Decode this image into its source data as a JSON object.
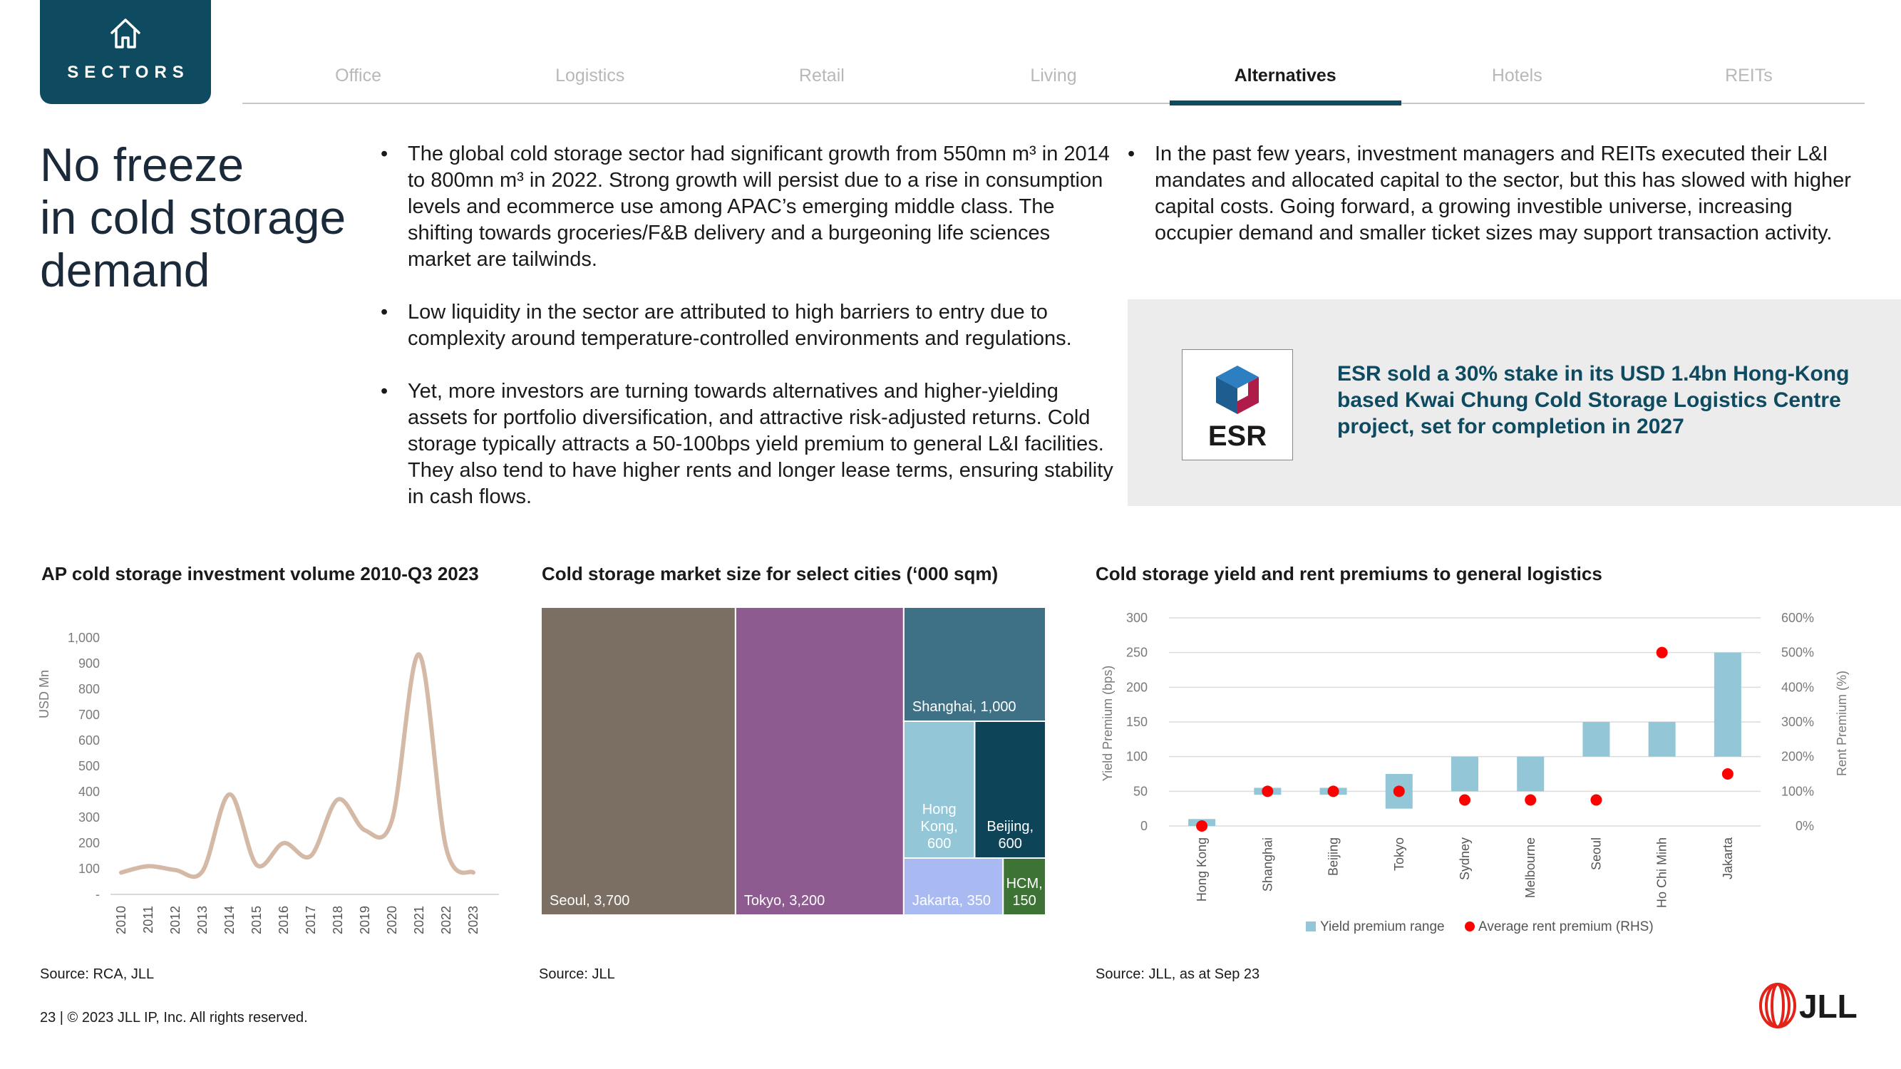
{
  "nav": {
    "sectors_label": "SECTORS",
    "tabs": [
      {
        "label": "Office",
        "active": false
      },
      {
        "label": "Logistics",
        "active": false
      },
      {
        "label": "Retail",
        "active": false
      },
      {
        "label": "Living",
        "active": false
      },
      {
        "label": "Alternatives",
        "active": true
      },
      {
        "label": "Hotels",
        "active": false
      },
      {
        "label": "REITs",
        "active": false
      }
    ]
  },
  "title": "No freeze\nin cold storage\ndemand",
  "bullets_left": [
    "The global cold storage sector had significant growth from 550mn m³ in 2014 to 800mn m³  in 2022. Strong growth will persist due to a rise in consumption levels and ecommerce use among APAC’s emerging middle class. The shifting towards groceries/F&B delivery and a burgeoning life sciences market are tailwinds.",
    "Low liquidity in the sector are attributed to high barriers to entry due to complexity around temperature-controlled environments and regulations.",
    "Yet, more investors are turning towards alternatives and higher-yielding assets for portfolio diversification, and attractive risk-adjusted returns. Cold storage typically attracts a 50-100bps yield premium to general L&I facilities. They also tend to have higher rents and longer lease terms, ensuring stability in cash flows."
  ],
  "bullets_right": [
    "In the past few years, investment managers and REITs executed their L&I mandates and allocated capital to the sector, but this has slowed with higher capital costs. Going forward, a growing investible universe, increasing occupier demand and smaller ticket sizes may support transaction activity."
  ],
  "esr": {
    "logo_text": "ESR",
    "callout": "ESR sold a 30% stake in its USD 1.4bn Hong-Kong based Kwai Chung Cold Storage Logistics Centre project, set for completion in 2027"
  },
  "colors": {
    "brand": "#0e4a60",
    "line": "#d5b9a7",
    "bar": "#93c6d6",
    "dot": "#ff0000",
    "jll_red": "#e2231a"
  },
  "chart_data": [
    {
      "type": "line",
      "title": "AP cold storage investment volume 2010-Q3 2023",
      "ylabel": "USD Mn",
      "xlabel": "",
      "x": [
        "2010",
        "2011",
        "2012",
        "2013",
        "2014",
        "2015",
        "2016",
        "2017",
        "2018",
        "2019",
        "2020",
        "2021",
        "2022",
        "2023"
      ],
      "y_ticks": [
        "-",
        "100",
        "200",
        "300",
        "400",
        "500",
        "600",
        "700",
        "800",
        "900",
        "1,000"
      ],
      "ylim": [
        0,
        1000
      ],
      "series": [
        {
          "values": [
            85,
            110,
            95,
            90,
            390,
            115,
            200,
            150,
            370,
            250,
            290,
            935,
            180,
            85
          ]
        }
      ],
      "smooth": true,
      "grid": false,
      "source": "Source: RCA, JLL"
    },
    {
      "type": "treemap",
      "title": "Cold storage market size for select cities (‘000 sqm)",
      "items": [
        {
          "city": "Seoul",
          "value": 3700,
          "label": "Seoul, 3,700",
          "color": "#7b6e63"
        },
        {
          "city": "Tokyo",
          "value": 3200,
          "label": "Tokyo, 3,200",
          "color": "#8e5b91"
        },
        {
          "city": "Shanghai",
          "value": 1000,
          "label": "Shanghai, 1,000",
          "color": "#3f7186"
        },
        {
          "city": "Hong Kong",
          "value": 600,
          "label": "Hong Kong, 600",
          "color": "#93c6d6"
        },
        {
          "city": "Beijing",
          "value": 600,
          "label": "Beijing, 600",
          "color": "#0d4458"
        },
        {
          "city": "Jakarta",
          "value": 350,
          "label": "Jakarta, 350",
          "color": "#a9b9f2"
        },
        {
          "city": "HCM",
          "value": 150,
          "label": "HCM, 150",
          "color": "#3d7436"
        }
      ],
      "source": "Source: JLL"
    },
    {
      "type": "bar",
      "title": "Cold storage yield and rent premiums to general logistics",
      "categories": [
        "Hong Kong",
        "Shanghai",
        "Beijing",
        "Tokyo",
        "Sydney",
        "Melbourne",
        "Seoul",
        "Ho Chi Minh",
        "Jakarta"
      ],
      "ylabel": "Yield Premium (bps)",
      "ylabel_right": "Rent Premium (%)",
      "ylim": [
        0,
        300
      ],
      "ylim_right": [
        0,
        600
      ],
      "y_ticks": [
        "0",
        "50",
        "100",
        "150",
        "200",
        "250",
        "300"
      ],
      "y_ticks_right": [
        "0%",
        "100%",
        "200%",
        "300%",
        "400%",
        "500%",
        "600%"
      ],
      "series": [
        {
          "name": "Yield premium range",
          "kind": "range",
          "low": [
            0,
            45,
            45,
            25,
            50,
            50,
            100,
            100,
            100
          ],
          "high": [
            10,
            55,
            55,
            75,
            100,
            100,
            150,
            150,
            250
          ]
        },
        {
          "name": "Average rent premium (RHS)",
          "kind": "dot",
          "axis": "right",
          "values": [
            0,
            100,
            100,
            100,
            75,
            75,
            75,
            500,
            150
          ]
        }
      ],
      "grid": true,
      "legend": "bottom",
      "source": "Source: JLL, as at Sep 23"
    }
  ],
  "footer": {
    "text": "23  |  © 2023 JLL IP, Inc. All rights reserved.",
    "logo_text": "JLL"
  }
}
